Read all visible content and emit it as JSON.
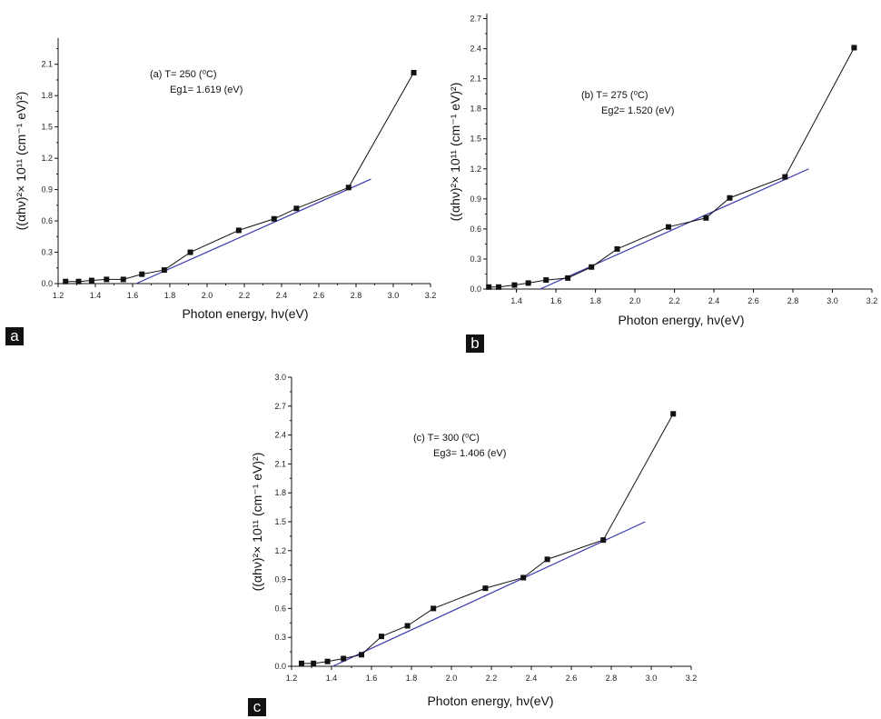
{
  "chart_data": [
    {
      "type": "line",
      "panel_label": "a",
      "xlabel": "Photon energy, hν(eV)",
      "ylabel": "((αhν)²× 10¹¹ (cm⁻¹ eV)²)",
      "xlim": [
        1.2,
        3.2
      ],
      "ylim": [
        0.0,
        2.35
      ],
      "xticks": [
        "1.2",
        "1.4",
        "1.6",
        "1.8",
        "2.0",
        "2.2",
        "2.4",
        "2.6",
        "2.8",
        "3.0",
        "3.2"
      ],
      "yticks": [
        "0.0",
        "0.3",
        "0.6",
        "0.9",
        "1.2",
        "1.5",
        "1.8",
        "2.1"
      ],
      "annotation": {
        "line1": "(a) T= 250 (⁰C)",
        "line2": "Eg1= 1.619 (eV)"
      },
      "series": [
        {
          "x": [
            1.24,
            1.31,
            1.38,
            1.46,
            1.55,
            1.65,
            1.77,
            1.91,
            2.17,
            2.36,
            2.48,
            2.76,
            3.11
          ],
          "y": [
            0.02,
            0.02,
            0.03,
            0.04,
            0.04,
            0.09,
            0.13,
            0.3,
            0.51,
            0.62,
            0.72,
            0.92,
            2.02
          ]
        },
        {
          "kind": "fit",
          "x": [
            1.619,
            2.88
          ],
          "y": [
            0.0,
            1.0
          ]
        }
      ],
      "colors": {
        "data": "#111111",
        "fit": "#3a3ab0"
      }
    },
    {
      "type": "line",
      "panel_label": "b",
      "xlabel": "Photon energy, hν(eV)",
      "ylabel": "((αhν)²× 10¹¹ (cm⁻¹ eV)²)",
      "xlim": [
        1.25,
        3.2
      ],
      "ylim": [
        0.0,
        2.75
      ],
      "xticks": [
        "1.4",
        "1.6",
        "1.8",
        "2.0",
        "2.2",
        "2.4",
        "2.6",
        "2.8",
        "3.0",
        "3.2"
      ],
      "yticks": [
        "0.0",
        "0.3",
        "0.6",
        "0.9",
        "1.2",
        "1.5",
        "1.8",
        "2.1",
        "2.4",
        "2.7"
      ],
      "annotation": {
        "line1": "(b) T= 275 (⁰C)",
        "line2": "Eg2= 1.520 (eV)"
      },
      "series": [
        {
          "x": [
            1.26,
            1.31,
            1.39,
            1.46,
            1.55,
            1.66,
            1.78,
            1.91,
            2.17,
            2.36,
            2.48,
            2.76,
            3.11
          ],
          "y": [
            0.02,
            0.02,
            0.04,
            0.06,
            0.09,
            0.11,
            0.22,
            0.4,
            0.62,
            0.71,
            0.91,
            1.12,
            2.41
          ]
        },
        {
          "kind": "fit",
          "x": [
            1.52,
            2.88
          ],
          "y": [
            0.0,
            1.2
          ]
        }
      ],
      "colors": {
        "data": "#111111",
        "fit": "#3a3ab0"
      }
    },
    {
      "type": "line",
      "panel_label": "c",
      "xlabel": "Photon energy, hν(eV)",
      "ylabel": "((αhν)²× 10¹¹ (cm⁻¹ eV)²)",
      "xlim": [
        1.2,
        3.2
      ],
      "ylim": [
        0.0,
        3.0
      ],
      "xticks": [
        "1.2",
        "1.4",
        "1.6",
        "1.8",
        "2.0",
        "2.2",
        "2.4",
        "2.6",
        "2.8",
        "3.0",
        "3.2"
      ],
      "yticks": [
        "0.0",
        "0.3",
        "0.6",
        "0.9",
        "1.2",
        "1.5",
        "1.8",
        "2.1",
        "2.4",
        "2.7",
        "3.0"
      ],
      "annotation": {
        "line1": "(c) T= 300 (⁰C)",
        "line2": "Eg3= 1.406 (eV)"
      },
      "series": [
        {
          "x": [
            1.25,
            1.31,
            1.38,
            1.46,
            1.55,
            1.65,
            1.78,
            1.91,
            2.17,
            2.36,
            2.48,
            2.76,
            3.11
          ],
          "y": [
            0.03,
            0.03,
            0.05,
            0.08,
            0.12,
            0.31,
            0.42,
            0.6,
            0.81,
            0.92,
            1.11,
            1.31,
            2.62
          ]
        },
        {
          "kind": "fit",
          "x": [
            1.406,
            2.97
          ],
          "y": [
            0.0,
            1.5
          ]
        }
      ],
      "colors": {
        "data": "#111111",
        "fit": "#3a3ab0"
      }
    }
  ]
}
